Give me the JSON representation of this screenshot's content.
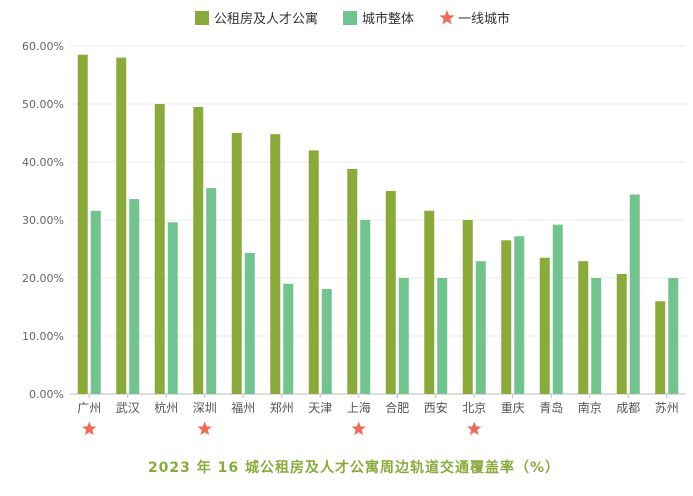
{
  "chart_data": {
    "type": "bar",
    "title": "2023 年 16 城公租房及人才公寓周边轨道交通覆盖率（%）",
    "categories": [
      "广州",
      "武汉",
      "杭州",
      "深圳",
      "福州",
      "郑州",
      "天津",
      "上海",
      "合肥",
      "西安",
      "北京",
      "重庆",
      "青岛",
      "南京",
      "成都",
      "苏州"
    ],
    "series": [
      {
        "name": "公租房及人才公寓",
        "color": "#8aab3c",
        "values": [
          58.5,
          58.0,
          50.0,
          49.5,
          45.0,
          44.8,
          42.0,
          38.8,
          35.0,
          31.6,
          30.0,
          26.5,
          23.5,
          22.9,
          20.7,
          16.0
        ]
      },
      {
        "name": "城市整体",
        "color": "#72c38f",
        "values": [
          31.6,
          33.6,
          29.6,
          35.5,
          24.3,
          19.0,
          18.1,
          30.0,
          20.0,
          20.0,
          22.9,
          27.2,
          29.2,
          20.0,
          34.4,
          20.0
        ]
      }
    ],
    "tier1_legend": {
      "name": "一线城市",
      "color": "#f06a5a"
    },
    "tier1_cities": [
      "广州",
      "深圳",
      "上海",
      "北京"
    ],
    "ylim": [
      0,
      60
    ],
    "yticks": [
      "0.00%",
      "10.00%",
      "20.00%",
      "30.00%",
      "40.00%",
      "50.00%",
      "60.00%"
    ],
    "grid": true,
    "legend_position": "top-center"
  }
}
